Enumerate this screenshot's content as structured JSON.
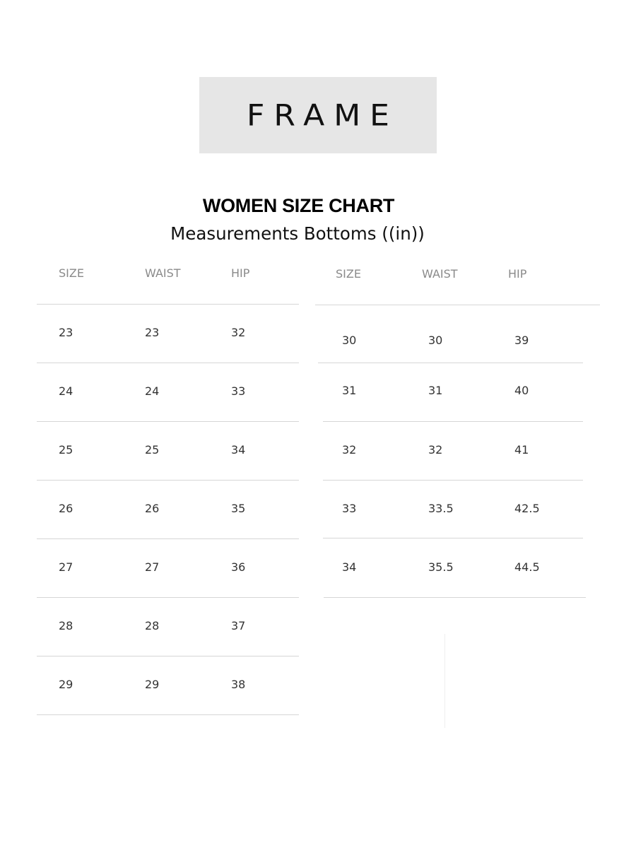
{
  "logo": {
    "text": "FRAME",
    "background": "#e6e6e6"
  },
  "title": "WOMEN SIZE CHART",
  "subtitle": "Measurements Bottoms ((in))",
  "tables": [
    {
      "headers": [
        "SIZE",
        "WAIST",
        "HIP"
      ],
      "rows": [
        [
          "23",
          "23",
          "32"
        ],
        [
          "24",
          "24",
          "33"
        ],
        [
          "25",
          "25",
          "34"
        ],
        [
          "26",
          "26",
          "35"
        ],
        [
          "27",
          "27",
          "36"
        ],
        [
          "28",
          "28",
          "37"
        ],
        [
          "29",
          "29",
          "38"
        ]
      ]
    },
    {
      "headers": [
        "SIZE",
        "WAIST",
        "HIP"
      ],
      "rows": [
        [
          "30",
          "30",
          "39"
        ],
        [
          "31",
          "31",
          "40"
        ],
        [
          "32",
          "32",
          "41"
        ],
        [
          "33",
          "33.5",
          "42.5"
        ],
        [
          "34",
          "35.5",
          "44.5"
        ]
      ]
    }
  ]
}
